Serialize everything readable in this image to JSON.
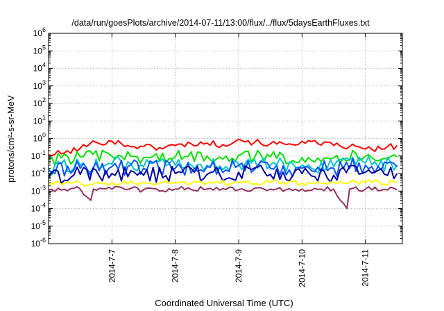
{
  "chart_data": {
    "type": "line",
    "title": "/data/run/goesPlots/archive/2014-07-11/13:00/flux/../flux/5daysEarthFluxes.txt",
    "xlabel": "Coordinated Universal Time (UTC)",
    "ylabel": "protons/cm²-s-sr-MeV",
    "yscale": "log",
    "ylim": [
      1e-06,
      1000000.0
    ],
    "xlim": [
      "2014-07-06 00:00",
      "2014-07-11 14:00"
    ],
    "x_ticks": [
      "2014-7-7",
      "2014-7-8",
      "2014-7-9",
      "2014-7-10",
      "2014-7-11"
    ],
    "y_ticks": [
      {
        "base": "10",
        "exp": "-6"
      },
      {
        "base": "10",
        "exp": "-5"
      },
      {
        "base": "10",
        "exp": "-4"
      },
      {
        "base": "10",
        "exp": "-3"
      },
      {
        "base": "10",
        "exp": "-2"
      },
      {
        "base": "10",
        "exp": "-1"
      },
      {
        "base": "10",
        "exp": "0"
      },
      {
        "base": "10",
        "exp": "1"
      },
      {
        "base": "10",
        "exp": "2"
      },
      {
        "base": "10",
        "exp": "3"
      },
      {
        "base": "10",
        "exp": "4"
      },
      {
        "base": "10",
        "exp": "5"
      },
      {
        "base": "10",
        "exp": "6"
      }
    ],
    "grid": true,
    "series": [
      {
        "color": "#ff0000",
        "x": [
          "2014-07-06 00:00",
          "2014-07-06 06:00",
          "2014-07-06 12:00",
          "2014-07-06 18:00",
          "2014-07-07 00:00",
          "2014-07-07 06:00",
          "2014-07-07 12:00",
          "2014-07-07 18:00",
          "2014-07-08 00:00",
          "2014-07-08 06:00",
          "2014-07-08 12:00",
          "2014-07-08 18:00",
          "2014-07-09 00:00",
          "2014-07-09 06:00",
          "2014-07-09 12:00",
          "2014-07-09 18:00",
          "2014-07-10 00:00",
          "2014-07-10 06:00",
          "2014-07-10 12:00",
          "2014-07-10 18:00",
          "2014-07-11 00:00",
          "2014-07-11 06:00",
          "2014-07-11 12:00"
        ],
        "values": [
          0.12,
          0.15,
          0.28,
          0.6,
          0.7,
          0.4,
          0.35,
          0.3,
          0.4,
          0.5,
          0.55,
          0.45,
          0.9,
          0.6,
          0.5,
          0.45,
          0.7,
          0.5,
          0.4,
          0.35,
          0.25,
          0.25,
          0.4
        ]
      },
      {
        "color": "#00e000",
        "x": [
          "2014-07-06 00:00",
          "2014-07-06 12:00",
          "2014-07-07 00:00",
          "2014-07-07 12:00",
          "2014-07-08 00:00",
          "2014-07-08 12:00",
          "2014-07-09 00:00",
          "2014-07-09 12:00",
          "2014-07-10 00:00",
          "2014-07-10 12:00",
          "2014-07-11 00:00",
          "2014-07-11 12:00"
        ],
        "values": [
          0.06,
          0.09,
          0.1,
          0.08,
          0.09,
          0.1,
          0.11,
          0.09,
          0.08,
          0.08,
          0.1,
          0.09
        ]
      },
      {
        "color": "#00c8c8",
        "x": [
          "2014-07-06 00:00",
          "2014-07-06 12:00",
          "2014-07-07 00:00",
          "2014-07-07 12:00",
          "2014-07-08 00:00",
          "2014-07-08 12:00",
          "2014-07-09 00:00",
          "2014-07-09 12:00",
          "2014-07-10 00:00",
          "2014-07-10 12:00",
          "2014-07-11 00:00",
          "2014-07-11 12:00"
        ],
        "values": [
          0.02,
          0.03,
          0.035,
          0.025,
          0.03,
          0.03,
          0.035,
          0.03,
          0.03,
          0.025,
          0.04,
          0.03
        ]
      },
      {
        "color": "#0055ff",
        "x": [
          "2014-07-06 00:00",
          "2014-07-06 12:00",
          "2014-07-07 00:00",
          "2014-07-07 12:00",
          "2014-07-08 00:00",
          "2014-07-08 12:00",
          "2014-07-09 00:00",
          "2014-07-09 12:00",
          "2014-07-10 00:00",
          "2014-07-10 12:00",
          "2014-07-11 00:00",
          "2014-07-11 12:00"
        ],
        "values": [
          0.015,
          0.02,
          0.025,
          0.02,
          0.02,
          0.025,
          0.03,
          0.02,
          0.02,
          0.02,
          0.03,
          0.025
        ]
      },
      {
        "color": "#0000a0",
        "x": [
          "2014-07-06 00:00",
          "2014-07-06 12:00",
          "2014-07-07 00:00",
          "2014-07-07 12:00",
          "2014-07-08 00:00",
          "2014-07-08 12:00",
          "2014-07-09 00:00",
          "2014-07-09 12:00",
          "2014-07-10 00:00",
          "2014-07-10 12:00",
          "2014-07-11 00:00",
          "2014-07-11 12:00"
        ],
        "values": [
          0.006,
          0.009,
          0.01,
          0.008,
          0.01,
          0.009,
          0.012,
          0.009,
          0.01,
          0.008,
          0.012,
          0.01
        ]
      },
      {
        "color": "#ffff00",
        "x": [
          "2014-07-06 00:00",
          "2014-07-06 12:00",
          "2014-07-07 00:00",
          "2014-07-07 12:00",
          "2014-07-08 00:00",
          "2014-07-08 12:00",
          "2014-07-09 00:00",
          "2014-07-09 12:00",
          "2014-07-10 00:00",
          "2014-07-10 12:00",
          "2014-07-11 00:00",
          "2014-07-11 12:00"
        ],
        "values": [
          0.003,
          0.0028,
          0.003,
          0.0032,
          0.003,
          0.0028,
          0.003,
          0.003,
          0.0029,
          0.003,
          0.0031,
          0.003
        ]
      },
      {
        "color": "#903060",
        "x": [
          "2014-07-06 00:00",
          "2014-07-06 12:00",
          "2014-07-06 16:00",
          "2014-07-06 17:00",
          "2014-07-07 00:00",
          "2014-07-07 12:00",
          "2014-07-08 00:00",
          "2014-07-08 12:00",
          "2014-07-09 00:00",
          "2014-07-09 12:00",
          "2014-07-10 00:00",
          "2014-07-10 12:00",
          "2014-07-10 17:00",
          "2014-07-10 18:00",
          "2014-07-11 00:00",
          "2014-07-11 12:00"
        ],
        "values": [
          0.0012,
          0.0013,
          0.0003,
          0.0013,
          0.0013,
          0.0012,
          0.0013,
          0.0013,
          0.0012,
          0.0013,
          0.0013,
          0.0013,
          0.0001,
          0.0013,
          0.0013,
          0.0012
        ]
      }
    ]
  }
}
